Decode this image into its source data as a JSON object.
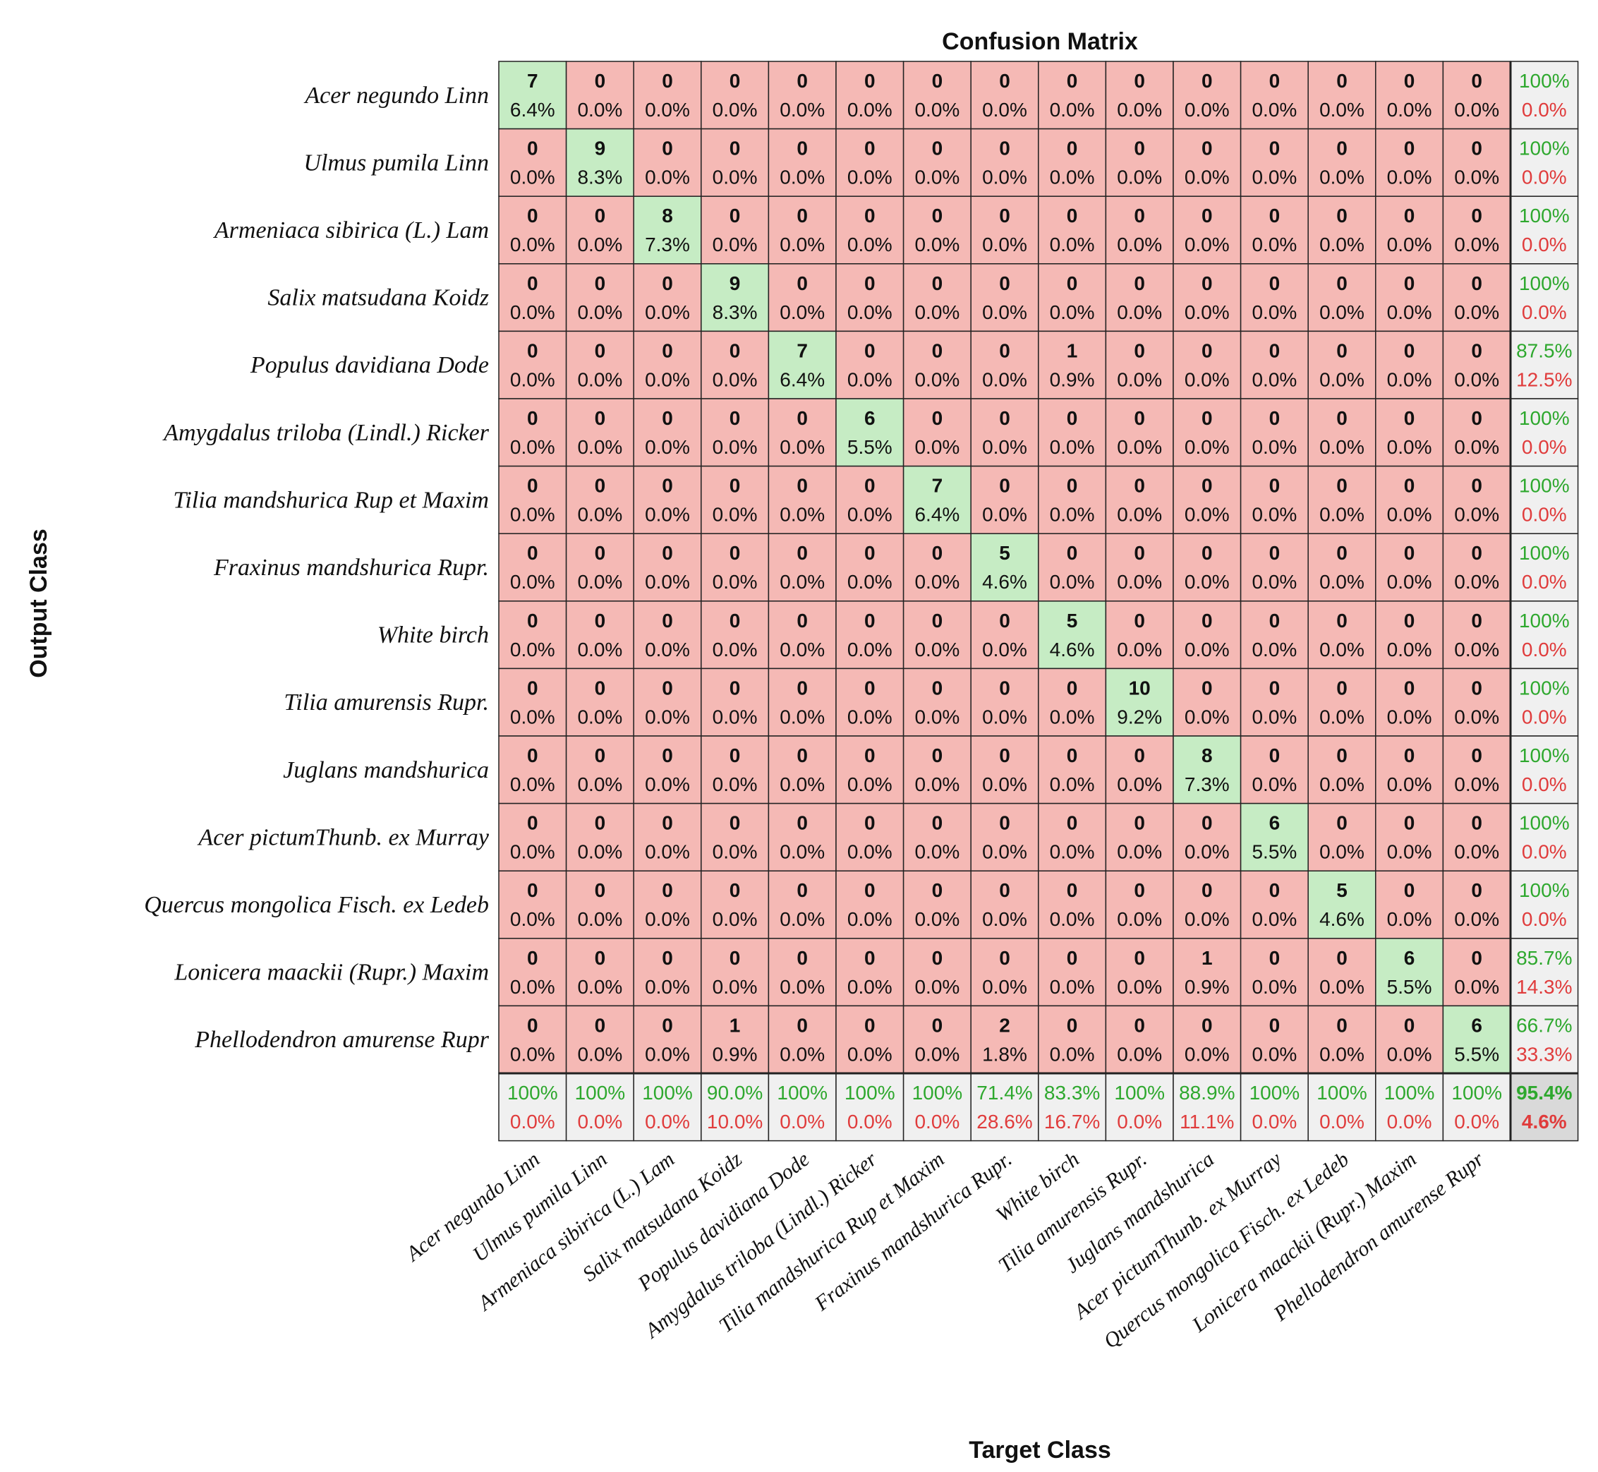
{
  "chart_data": {
    "type": "heatmap",
    "title": "Confusion Matrix",
    "xlabel": "Target Class",
    "ylabel": "Output Class",
    "classes": [
      "Acer negundo Linn",
      "Ulmus pumila Linn",
      "Armeniaca sibirica (L.) Lam",
      "Salix matsudana Koidz",
      "Populus davidiana Dode",
      "Amygdalus triloba (Lindl.) Ricker",
      "Tilia mandshurica Rup et Maxim",
      "Fraxinus mandshurica Rupr.",
      "White birch",
      "Tilia amurensis Rupr.",
      "Juglans mandshurica",
      "Acer pictumThunb. ex Murray",
      "Quercus mongolica Fisch. ex Ledeb",
      "Lonicera maackii (Rupr.) Maxim",
      "Phellodendron amurense Rupr"
    ],
    "matrix": [
      [
        7,
        0,
        0,
        0,
        0,
        0,
        0,
        0,
        0,
        0,
        0,
        0,
        0,
        0,
        0
      ],
      [
        0,
        9,
        0,
        0,
        0,
        0,
        0,
        0,
        0,
        0,
        0,
        0,
        0,
        0,
        0
      ],
      [
        0,
        0,
        8,
        0,
        0,
        0,
        0,
        0,
        0,
        0,
        0,
        0,
        0,
        0,
        0
      ],
      [
        0,
        0,
        0,
        9,
        0,
        0,
        0,
        0,
        0,
        0,
        0,
        0,
        0,
        0,
        0
      ],
      [
        0,
        0,
        0,
        0,
        7,
        0,
        0,
        0,
        1,
        0,
        0,
        0,
        0,
        0,
        0
      ],
      [
        0,
        0,
        0,
        0,
        0,
        6,
        0,
        0,
        0,
        0,
        0,
        0,
        0,
        0,
        0
      ],
      [
        0,
        0,
        0,
        0,
        0,
        0,
        7,
        0,
        0,
        0,
        0,
        0,
        0,
        0,
        0
      ],
      [
        0,
        0,
        0,
        0,
        0,
        0,
        0,
        5,
        0,
        0,
        0,
        0,
        0,
        0,
        0
      ],
      [
        0,
        0,
        0,
        0,
        0,
        0,
        0,
        0,
        5,
        0,
        0,
        0,
        0,
        0,
        0
      ],
      [
        0,
        0,
        0,
        0,
        0,
        0,
        0,
        0,
        0,
        10,
        0,
        0,
        0,
        0,
        0
      ],
      [
        0,
        0,
        0,
        0,
        0,
        0,
        0,
        0,
        0,
        0,
        8,
        0,
        0,
        0,
        0
      ],
      [
        0,
        0,
        0,
        0,
        0,
        0,
        0,
        0,
        0,
        0,
        0,
        6,
        0,
        0,
        0
      ],
      [
        0,
        0,
        0,
        0,
        0,
        0,
        0,
        0,
        0,
        0,
        0,
        0,
        5,
        0,
        0
      ],
      [
        0,
        0,
        0,
        0,
        0,
        0,
        0,
        0,
        0,
        0,
        1,
        0,
        0,
        6,
        0
      ],
      [
        0,
        0,
        0,
        1,
        0,
        0,
        0,
        2,
        0,
        0,
        0,
        0,
        0,
        0,
        6
      ]
    ],
    "percent_labels": [
      [
        "6.4%",
        "0.0%",
        "0.0%",
        "0.0%",
        "0.0%",
        "0.0%",
        "0.0%",
        "0.0%",
        "0.0%",
        "0.0%",
        "0.0%",
        "0.0%",
        "0.0%",
        "0.0%",
        "0.0%"
      ],
      [
        "0.0%",
        "8.3%",
        "0.0%",
        "0.0%",
        "0.0%",
        "0.0%",
        "0.0%",
        "0.0%",
        "0.0%",
        "0.0%",
        "0.0%",
        "0.0%",
        "0.0%",
        "0.0%",
        "0.0%"
      ],
      [
        "0.0%",
        "0.0%",
        "7.3%",
        "0.0%",
        "0.0%",
        "0.0%",
        "0.0%",
        "0.0%",
        "0.0%",
        "0.0%",
        "0.0%",
        "0.0%",
        "0.0%",
        "0.0%",
        "0.0%"
      ],
      [
        "0.0%",
        "0.0%",
        "0.0%",
        "8.3%",
        "0.0%",
        "0.0%",
        "0.0%",
        "0.0%",
        "0.0%",
        "0.0%",
        "0.0%",
        "0.0%",
        "0.0%",
        "0.0%",
        "0.0%"
      ],
      [
        "0.0%",
        "0.0%",
        "0.0%",
        "0.0%",
        "6.4%",
        "0.0%",
        "0.0%",
        "0.0%",
        "0.9%",
        "0.0%",
        "0.0%",
        "0.0%",
        "0.0%",
        "0.0%",
        "0.0%"
      ],
      [
        "0.0%",
        "0.0%",
        "0.0%",
        "0.0%",
        "0.0%",
        "5.5%",
        "0.0%",
        "0.0%",
        "0.0%",
        "0.0%",
        "0.0%",
        "0.0%",
        "0.0%",
        "0.0%",
        "0.0%"
      ],
      [
        "0.0%",
        "0.0%",
        "0.0%",
        "0.0%",
        "0.0%",
        "0.0%",
        "6.4%",
        "0.0%",
        "0.0%",
        "0.0%",
        "0.0%",
        "0.0%",
        "0.0%",
        "0.0%",
        "0.0%"
      ],
      [
        "0.0%",
        "0.0%",
        "0.0%",
        "0.0%",
        "0.0%",
        "0.0%",
        "0.0%",
        "4.6%",
        "0.0%",
        "0.0%",
        "0.0%",
        "0.0%",
        "0.0%",
        "0.0%",
        "0.0%"
      ],
      [
        "0.0%",
        "0.0%",
        "0.0%",
        "0.0%",
        "0.0%",
        "0.0%",
        "0.0%",
        "0.0%",
        "4.6%",
        "0.0%",
        "0.0%",
        "0.0%",
        "0.0%",
        "0.0%",
        "0.0%"
      ],
      [
        "0.0%",
        "0.0%",
        "0.0%",
        "0.0%",
        "0.0%",
        "0.0%",
        "0.0%",
        "0.0%",
        "0.0%",
        "9.2%",
        "0.0%",
        "0.0%",
        "0.0%",
        "0.0%",
        "0.0%"
      ],
      [
        "0.0%",
        "0.0%",
        "0.0%",
        "0.0%",
        "0.0%",
        "0.0%",
        "0.0%",
        "0.0%",
        "0.0%",
        "0.0%",
        "7.3%",
        "0.0%",
        "0.0%",
        "0.0%",
        "0.0%"
      ],
      [
        "0.0%",
        "0.0%",
        "0.0%",
        "0.0%",
        "0.0%",
        "0.0%",
        "0.0%",
        "0.0%",
        "0.0%",
        "0.0%",
        "0.0%",
        "5.5%",
        "0.0%",
        "0.0%",
        "0.0%"
      ],
      [
        "0.0%",
        "0.0%",
        "0.0%",
        "0.0%",
        "0.0%",
        "0.0%",
        "0.0%",
        "0.0%",
        "0.0%",
        "0.0%",
        "0.0%",
        "0.0%",
        "4.6%",
        "0.0%",
        "0.0%"
      ],
      [
        "0.0%",
        "0.0%",
        "0.0%",
        "0.0%",
        "0.0%",
        "0.0%",
        "0.0%",
        "0.0%",
        "0.0%",
        "0.0%",
        "0.9%",
        "0.0%",
        "0.0%",
        "5.5%",
        "0.0%"
      ],
      [
        "0.0%",
        "0.0%",
        "0.0%",
        "0.9%",
        "0.0%",
        "0.0%",
        "0.0%",
        "1.8%",
        "0.0%",
        "0.0%",
        "0.0%",
        "0.0%",
        "0.0%",
        "0.0%",
        "5.5%"
      ]
    ],
    "row_stats": [
      [
        "100%",
        "0.0%"
      ],
      [
        "100%",
        "0.0%"
      ],
      [
        "100%",
        "0.0%"
      ],
      [
        "100%",
        "0.0%"
      ],
      [
        "87.5%",
        "12.5%"
      ],
      [
        "100%",
        "0.0%"
      ],
      [
        "100%",
        "0.0%"
      ],
      [
        "100%",
        "0.0%"
      ],
      [
        "100%",
        "0.0%"
      ],
      [
        "100%",
        "0.0%"
      ],
      [
        "100%",
        "0.0%"
      ],
      [
        "100%",
        "0.0%"
      ],
      [
        "100%",
        "0.0%"
      ],
      [
        "85.7%",
        "14.3%"
      ],
      [
        "66.7%",
        "33.3%"
      ]
    ],
    "col_stats": [
      [
        "100%",
        "0.0%"
      ],
      [
        "100%",
        "0.0%"
      ],
      [
        "100%",
        "0.0%"
      ],
      [
        "90.0%",
        "10.0%"
      ],
      [
        "100%",
        "0.0%"
      ],
      [
        "100%",
        "0.0%"
      ],
      [
        "100%",
        "0.0%"
      ],
      [
        "71.4%",
        "28.6%"
      ],
      [
        "83.3%",
        "16.7%"
      ],
      [
        "100%",
        "0.0%"
      ],
      [
        "88.9%",
        "11.1%"
      ],
      [
        "100%",
        "0.0%"
      ],
      [
        "100%",
        "0.0%"
      ],
      [
        "100%",
        "0.0%"
      ],
      [
        "100%",
        "0.0%"
      ]
    ],
    "overall": [
      "95.4%",
      "4.6%"
    ]
  },
  "colors": {
    "correct_cell": "#c6ecc4",
    "wrong_cell": "#f5b9b5",
    "stat_cell": "#f0f0f0",
    "overall_cell": "#d9d9d9",
    "green_text": "#2ea82e",
    "red_text": "#e03c3c"
  }
}
